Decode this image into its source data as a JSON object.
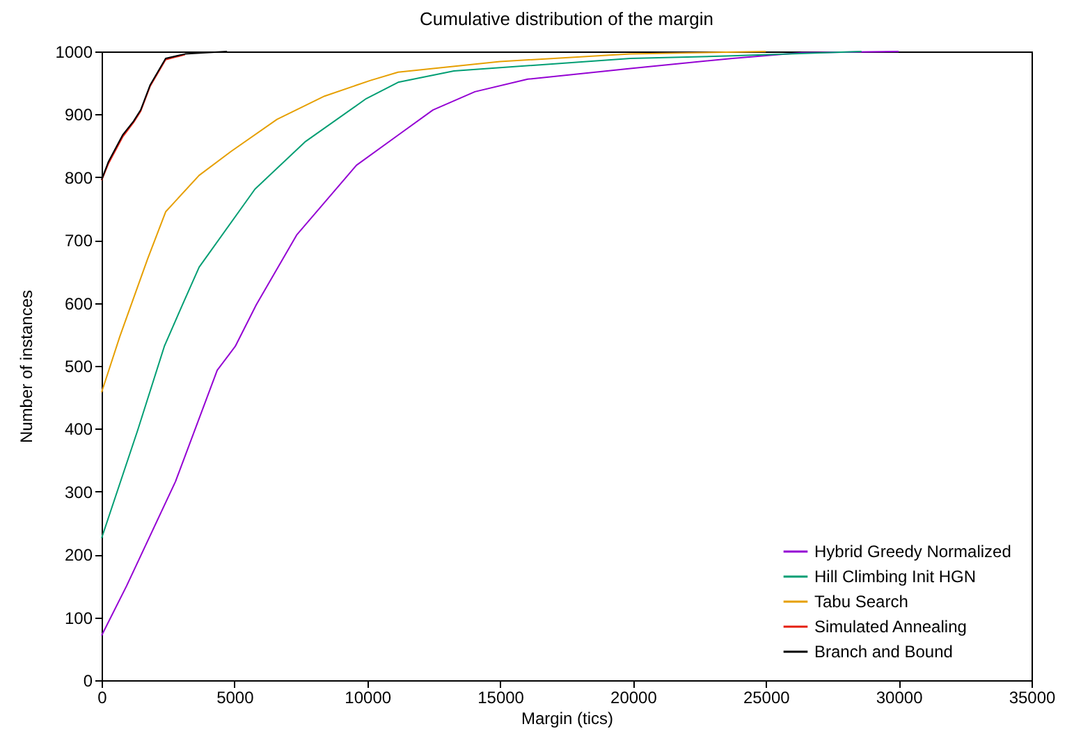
{
  "chart_data": {
    "type": "line",
    "title": "Cumulative distribution of the margin",
    "xlabel": "Margin (tics)",
    "ylabel": "Number of instances",
    "xlim": [
      0,
      35000
    ],
    "xticks": [
      0,
      5000,
      10000,
      15000,
      20000,
      25000,
      30000,
      35000
    ],
    "ylim": [
      0,
      1000
    ],
    "yticks": [
      0,
      100,
      200,
      300,
      400,
      500,
      600,
      700,
      800,
      900,
      1000
    ],
    "grid": false,
    "legend": "bottom right",
    "series": [
      {
        "name": "Hybrid Greedy Normalized",
        "color": "#9400d3",
        "x": [
          0,
          940,
          2780,
          4350,
          5030,
          5820,
          7340,
          9590,
          11160,
          12470,
          14050,
          16040,
          19900,
          23740,
          26360,
          30000
        ],
        "values": [
          71,
          150,
          316,
          493,
          531,
          597,
          708,
          819,
          867,
          907,
          936,
          956,
          973,
          989,
          998,
          1000
        ]
      },
      {
        "name": "Hill Climbing Init HGN",
        "color": "#009e73",
        "x": [
          0,
          1360,
          2360,
          3040,
          3670,
          5770,
          7650,
          9960,
          11160,
          13260,
          19900,
          23740,
          28600
        ],
        "values": [
          226,
          398,
          531,
          597,
          657,
          781,
          856,
          925,
          951,
          969,
          989,
          993,
          1000
        ]
      },
      {
        "name": "Tabu Search",
        "color": "#e69f00",
        "x": [
          0,
          680,
          1730,
          2410,
          3670,
          4870,
          6600,
          8390,
          10120,
          11160,
          14990,
          19900,
          25000
        ],
        "values": [
          458,
          546,
          670,
          745,
          803,
          841,
          892,
          929,
          954,
          967,
          984,
          996,
          1000
        ]
      },
      {
        "name": "Simulated Annealing",
        "color": "#e51e10",
        "x": [
          0,
          260,
          790,
          1200,
          1470,
          1830,
          2410,
          3140
        ],
        "values": [
          795,
          822,
          864,
          887,
          905,
          945,
          987,
          995
        ]
      },
      {
        "name": "Branch and Bound",
        "color": "#000000",
        "x": [
          0,
          260,
          790,
          1200,
          1470,
          1830,
          2410,
          3140,
          4720
        ],
        "values": [
          796,
          825,
          867,
          889,
          907,
          947,
          989,
          996,
          1000
        ]
      }
    ]
  }
}
